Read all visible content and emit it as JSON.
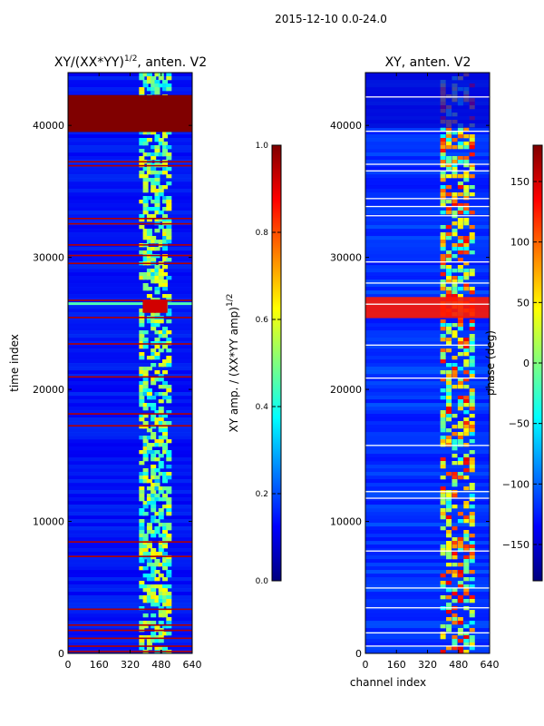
{
  "figure_title": "2015-12-10 0.0-24.0",
  "chart_data": [
    {
      "type": "heatmap",
      "title": "XY/(XX*YY)",
      "title_superscript": "1/2",
      "title_suffix": ", anten. V2",
      "xlabel": "",
      "ylabel": "time index",
      "xlim": [
        0,
        640
      ],
      "ylim": [
        0,
        44000
      ],
      "xticks": [
        0,
        160,
        320,
        480,
        640
      ],
      "yticks": [
        0,
        10000,
        20000,
        30000,
        40000
      ],
      "colormap": "jet",
      "colorbar": {
        "label": "XY amp. / (XX*YY amp)",
        "label_superscript": "1/2",
        "range": [
          0.0,
          1.0
        ],
        "ticks": [
          "0.0",
          "0.2",
          "0.4",
          "0.6",
          "0.8",
          "1.0"
        ]
      },
      "features": {
        "background_value": 0.1,
        "saturated_block_time": [
          39500,
          42300
        ],
        "saturated_lines_time": [
          37000,
          37300,
          33000,
          32600,
          31000,
          30200,
          29600,
          26800,
          25500,
          23500,
          21000,
          18200,
          17300,
          8500,
          7400,
          3400,
          2200,
          1800,
          1200,
          600,
          200
        ],
        "bright_columns_channel": [
          380,
          400,
          420,
          440,
          460,
          480,
          500,
          520
        ],
        "hot_spot_time": [
          25800,
          26800
        ],
        "hot_spot_channel": [
          385,
          480
        ]
      }
    },
    {
      "type": "heatmap",
      "title": "XY, anten. V2",
      "xlabel": "channel index",
      "ylabel": "",
      "xlim": [
        0,
        640
      ],
      "ylim": [
        0,
        44000
      ],
      "xticks": [
        0,
        160,
        320,
        480,
        640
      ],
      "yticks": [
        0,
        10000,
        20000,
        30000,
        40000
      ],
      "colormap": "jet",
      "colorbar": {
        "label": "phase (deg)",
        "range": [
          -180,
          180
        ],
        "ticks": [
          "150",
          "100",
          "50",
          "0",
          "−50",
          "−100",
          "−150"
        ]
      },
      "features": {
        "background_value": -120,
        "white_lines_time": [
          42200,
          39600,
          37100,
          36600,
          34500,
          33900,
          33200,
          29700,
          28100,
          26500,
          23400,
          20900,
          15800,
          12300,
          11800,
          7800,
          5000,
          3500,
          1600,
          600
        ],
        "hot_band_time": [
          25400,
          27000
        ],
        "bright_columns_channel": [
          400,
          430,
          460,
          490,
          520,
          550
        ]
      }
    }
  ]
}
